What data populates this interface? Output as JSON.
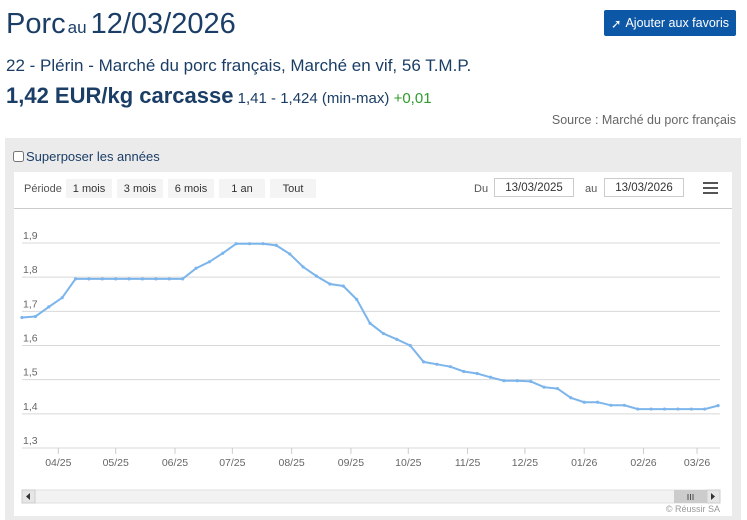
{
  "header": {
    "product": "Porc",
    "au": "au",
    "date": "12/03/2026",
    "favorite_button": "Ajouter aux favoris",
    "favorite_icon": "pin-icon",
    "subtitle": "22 - Plérin - Marché du porc français, Marché en vif, 56 T.M.P.",
    "price": "1,42 EUR/kg carcasse",
    "range": "1,41 - 1,424 (min-max)",
    "change": "+0,01",
    "source": "Source : Marché du porc français"
  },
  "colors": {
    "accent": "#0c57a6",
    "line": "#7cb5ec",
    "change": "#2e9c2e"
  },
  "controls": {
    "overlay_label": "Superposer les années",
    "overlay_checked": false,
    "period_label": "Période",
    "periods": [
      "1 mois",
      "3 mois",
      "6 mois",
      "1 an",
      "Tout"
    ],
    "from_label": "Du",
    "from_value": "13/03/2025",
    "to_label": "au",
    "to_value": "13/03/2026",
    "menu_icon": "hamburger-menu-icon"
  },
  "credits": "© Réussir SA",
  "chart_data": {
    "type": "line",
    "ylim": [
      1.3,
      1.9
    ],
    "yticks": [
      "1,3",
      "1,4",
      "1,5",
      "1,6",
      "1,7",
      "1,8",
      "1,9"
    ],
    "xticks": [
      "04/25",
      "05/25",
      "06/25",
      "07/25",
      "08/25",
      "09/25",
      "10/25",
      "11/25",
      "12/25",
      "01/26",
      "02/26",
      "03/26"
    ],
    "xtick_dates": [
      "2025-04-01",
      "2025-05-01",
      "2025-06-01",
      "2025-07-01",
      "2025-08-01",
      "2025-09-01",
      "2025-10-01",
      "2025-11-01",
      "2025-12-01",
      "2026-01-01",
      "2026-02-01",
      "2026-03-01"
    ],
    "xlim": [
      "2025-03-13",
      "2026-03-13"
    ],
    "grid": true,
    "x": [
      "2025-03-13",
      "2025-03-20",
      "2025-03-27",
      "2025-04-03",
      "2025-04-10",
      "2025-04-17",
      "2025-04-24",
      "2025-05-01",
      "2025-05-08",
      "2025-05-15",
      "2025-05-22",
      "2025-05-29",
      "2025-06-05",
      "2025-06-12",
      "2025-06-19",
      "2025-06-26",
      "2025-07-03",
      "2025-07-10",
      "2025-07-17",
      "2025-07-24",
      "2025-07-31",
      "2025-08-07",
      "2025-08-14",
      "2025-08-21",
      "2025-08-28",
      "2025-09-04",
      "2025-09-11",
      "2025-09-18",
      "2025-09-25",
      "2025-10-02",
      "2025-10-09",
      "2025-10-16",
      "2025-10-23",
      "2025-10-30",
      "2025-11-06",
      "2025-11-13",
      "2025-11-20",
      "2025-11-27",
      "2025-12-04",
      "2025-12-11",
      "2025-12-18",
      "2025-12-25",
      "2026-01-01",
      "2026-01-08",
      "2026-01-15",
      "2026-01-22",
      "2026-01-29",
      "2026-02-05",
      "2026-02-12",
      "2026-02-19",
      "2026-02-26",
      "2026-03-05",
      "2026-03-12"
    ],
    "values": [
      1.682,
      1.685,
      1.713,
      1.74,
      1.795,
      1.795,
      1.795,
      1.795,
      1.795,
      1.795,
      1.795,
      1.795,
      1.795,
      1.826,
      1.845,
      1.87,
      1.898,
      1.898,
      1.898,
      1.893,
      1.868,
      1.83,
      1.803,
      1.78,
      1.774,
      1.735,
      1.665,
      1.635,
      1.618,
      1.6,
      1.552,
      1.545,
      1.538,
      1.524,
      1.518,
      1.507,
      1.497,
      1.497,
      1.495,
      1.478,
      1.474,
      1.447,
      1.434,
      1.434,
      1.425,
      1.425,
      1.414,
      1.414,
      1.414,
      1.414,
      1.414,
      1.414,
      1.424
    ]
  }
}
